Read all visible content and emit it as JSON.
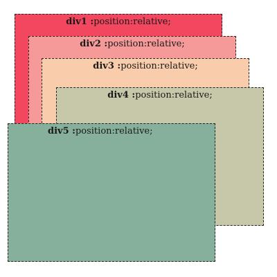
{
  "boxes": [
    {
      "id": "div1",
      "name": "div1 :",
      "text": "position:relative;",
      "color": "#f2475f"
    },
    {
      "id": "div2",
      "name": "div2 :",
      "text": "position:relative;",
      "color": "#f59a98"
    },
    {
      "id": "div3",
      "name": "div3 :",
      "text": "position:relative;",
      "color": "#f9ccab"
    },
    {
      "id": "div4",
      "name": "div4 :",
      "text": "position:relative;",
      "color": "#c6c8a9"
    },
    {
      "id": "div5",
      "name": "div5 :",
      "text": "position:relative;",
      "color": "#86b09b"
    }
  ]
}
